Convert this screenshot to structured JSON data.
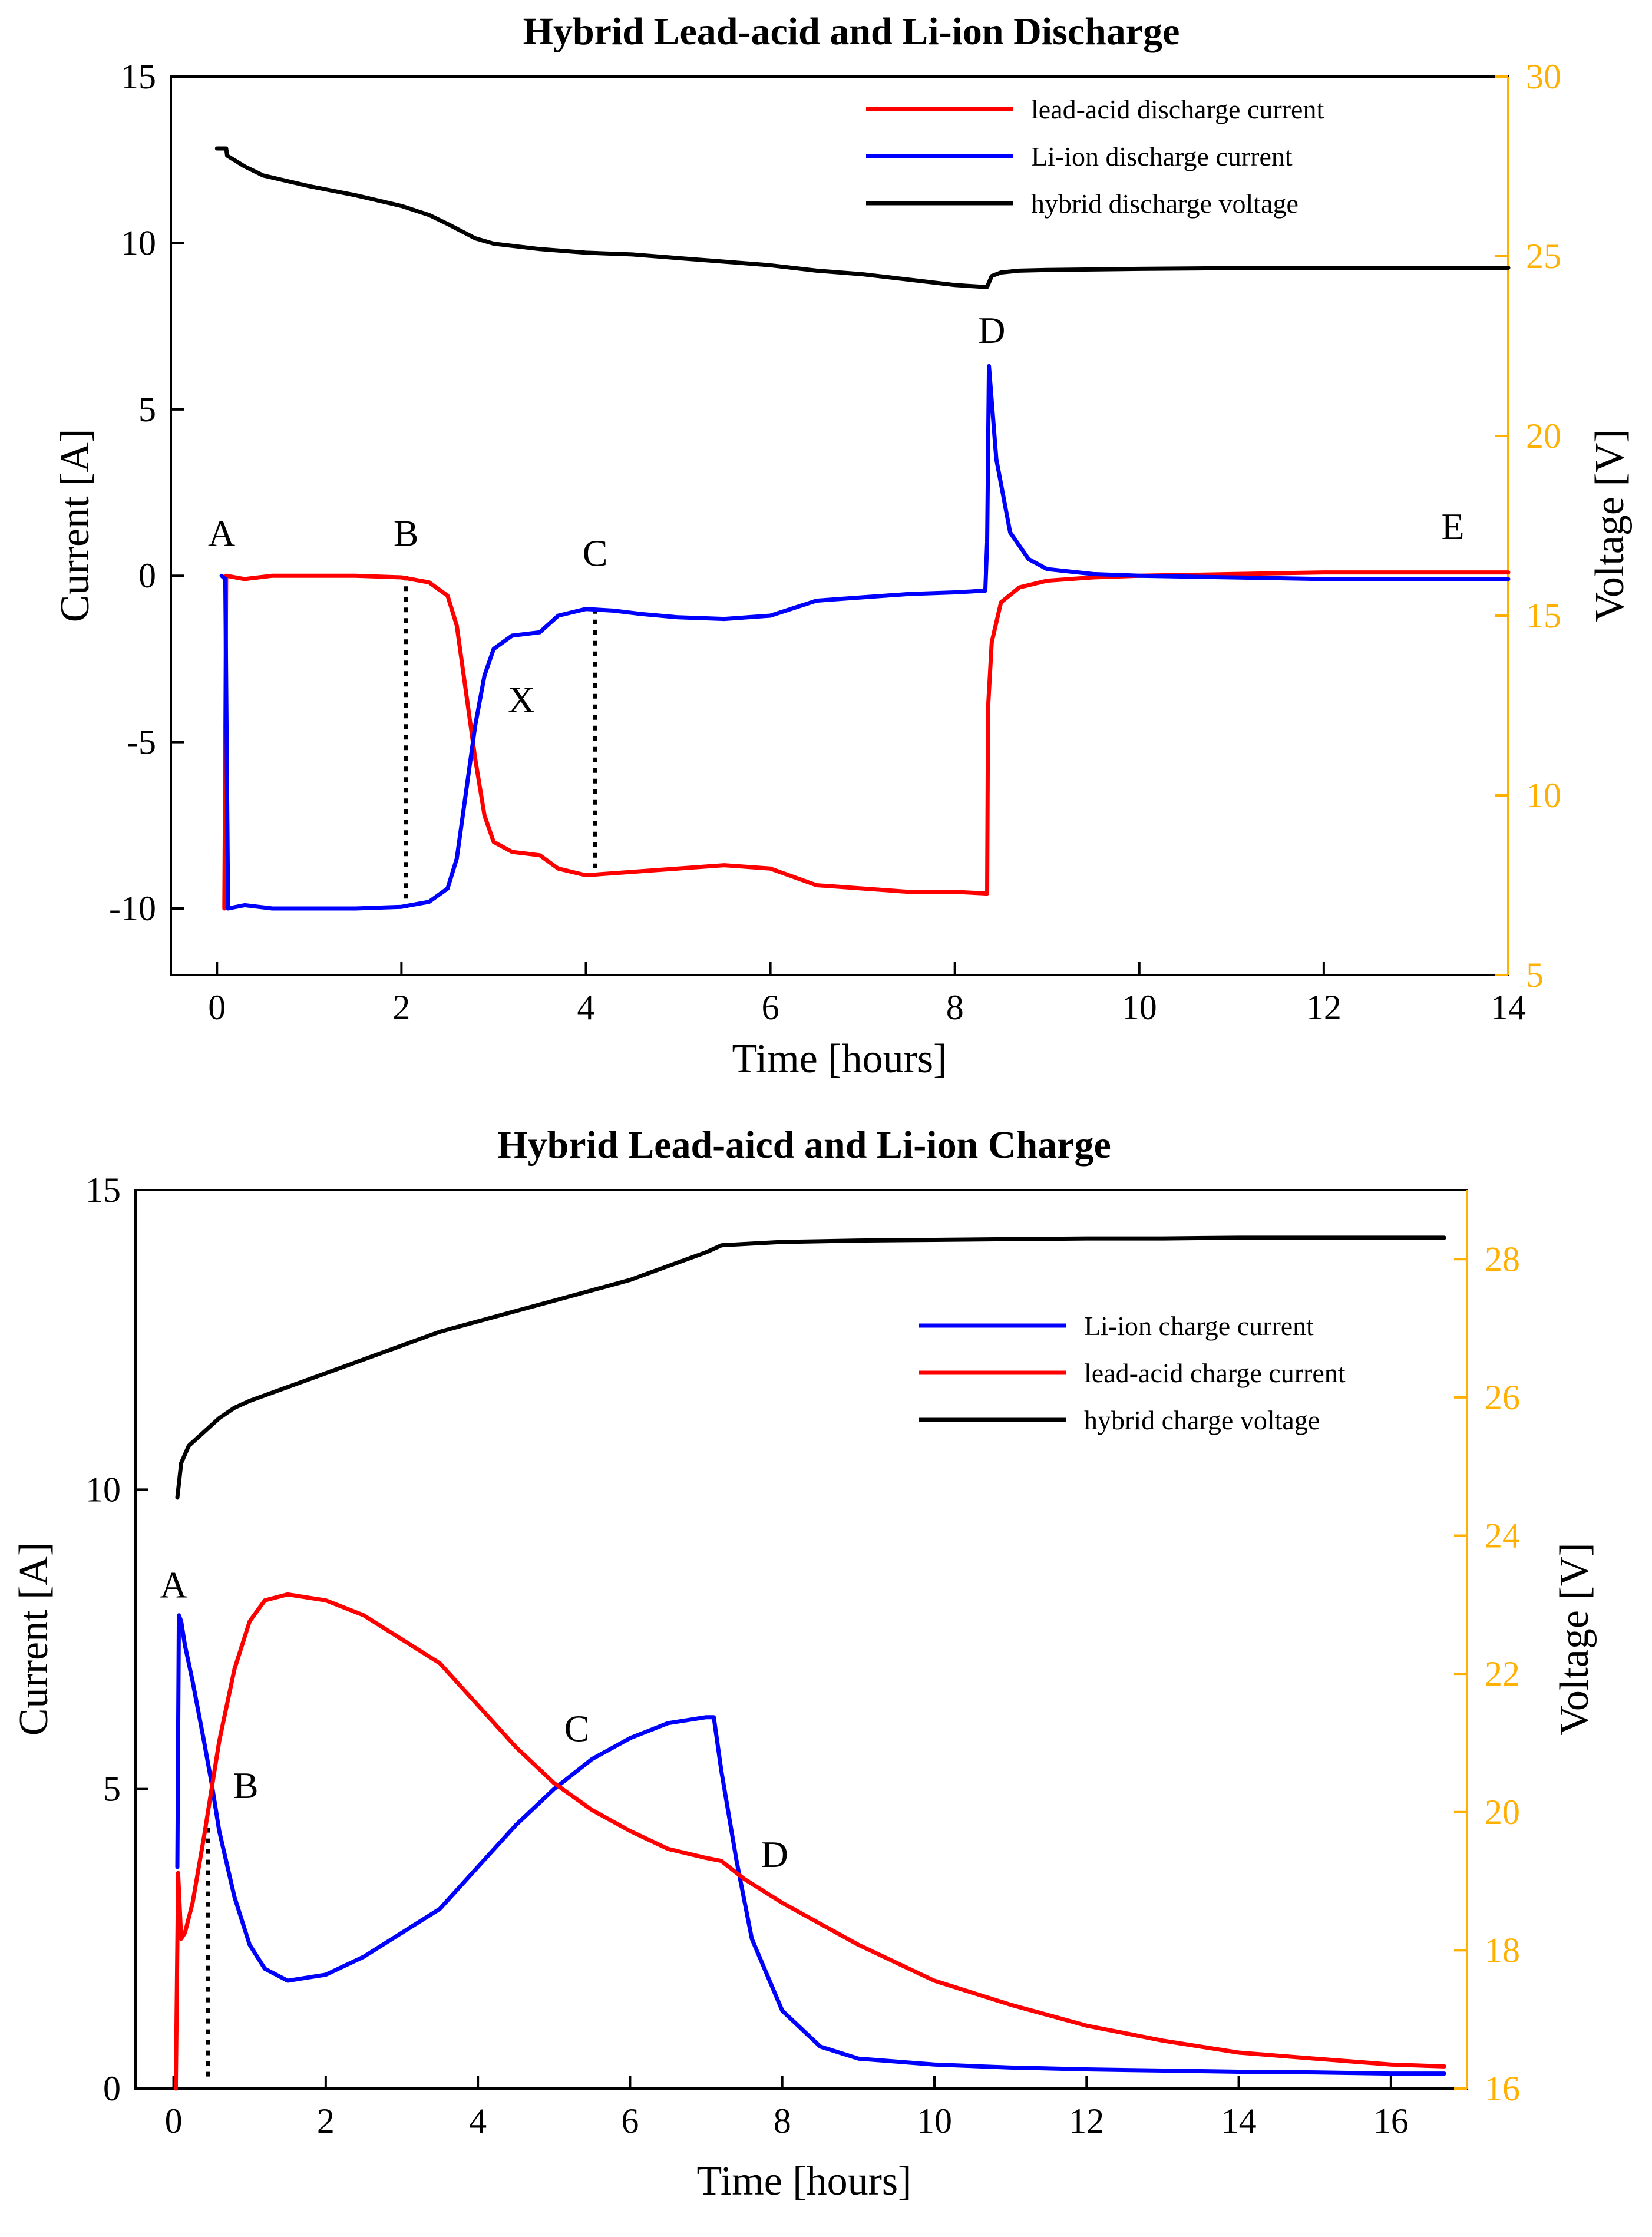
{
  "chart_data": [
    {
      "type": "line",
      "title": "Hybrid Lead-acid and Li-ion Discharge",
      "xlabel": "Time [hours]",
      "ylabel": "Current [A]",
      "y2label": "Voltage [V]",
      "xlim": [
        -0.5,
        14
      ],
      "ylim": [
        -12,
        15
      ],
      "y2lim": [
        5,
        30
      ],
      "xticks": [
        "0",
        "2",
        "4",
        "6",
        "8",
        "10",
        "12",
        "14"
      ],
      "yticks": [
        "-10",
        "-5",
        "0",
        "5",
        "10",
        "15"
      ],
      "y2ticks": [
        "5",
        "10",
        "15",
        "20",
        "25",
        "30"
      ],
      "legend_position": "top-right",
      "colors": {
        "lead_acid": "#ff0000",
        "li_ion": "#0000ff",
        "voltage": "#000000",
        "right_axis": "#ffb000"
      },
      "series": [
        {
          "name": "lead-acid discharge current",
          "axis": "left",
          "color": "#ff0000",
          "x": [
            0.08,
            0.1,
            0.3,
            0.6,
            1.0,
            1.5,
            2.0,
            2.3,
            2.5,
            2.6,
            2.7,
            2.8,
            2.9,
            3.0,
            3.2,
            3.5,
            3.7,
            4.0,
            4.5,
            5.0,
            5.5,
            6.0,
            6.5,
            7.0,
            7.5,
            8.0,
            8.35,
            8.36,
            8.4,
            8.5,
            8.7,
            9.0,
            9.5,
            10,
            11,
            12,
            13,
            14
          ],
          "y": [
            -10,
            0,
            -0.1,
            0,
            0,
            0,
            -0.05,
            -0.2,
            -0.6,
            -1.5,
            -3.5,
            -5.5,
            -7.2,
            -8.0,
            -8.3,
            -8.4,
            -8.8,
            -9.0,
            -8.9,
            -8.8,
            -8.7,
            -8.8,
            -9.3,
            -9.4,
            -9.5,
            -9.5,
            -9.55,
            -4.0,
            -2.0,
            -0.8,
            -0.35,
            -0.15,
            -0.05,
            0,
            0.05,
            0.1,
            0.1,
            0.1
          ]
        },
        {
          "name": "Li-ion discharge current",
          "axis": "left",
          "color": "#0000ff",
          "x": [
            0.05,
            0.09,
            0.12,
            0.3,
            0.6,
            1.0,
            1.5,
            2.0,
            2.3,
            2.5,
            2.6,
            2.7,
            2.8,
            2.9,
            3.0,
            3.2,
            3.5,
            3.7,
            4.0,
            4.3,
            4.6,
            5.0,
            5.5,
            6.0,
            6.5,
            7.0,
            7.5,
            8.0,
            8.33,
            8.35,
            8.37,
            8.45,
            8.6,
            8.8,
            9.0,
            9.5,
            10,
            11,
            12,
            13,
            14
          ],
          "y": [
            0,
            -0.1,
            -10,
            -9.9,
            -10,
            -10,
            -10,
            -9.95,
            -9.8,
            -9.4,
            -8.5,
            -6.5,
            -4.5,
            -3.0,
            -2.2,
            -1.8,
            -1.7,
            -1.2,
            -1.0,
            -1.05,
            -1.15,
            -1.25,
            -1.3,
            -1.2,
            -0.75,
            -0.65,
            -0.55,
            -0.5,
            -0.45,
            1.0,
            6.3,
            3.5,
            1.3,
            0.5,
            0.2,
            0.05,
            0,
            -0.05,
            -0.1,
            -0.1,
            -0.1
          ]
        },
        {
          "name": "hybrid discharge voltage",
          "axis": "right",
          "color": "#000000",
          "x": [
            0,
            0.1,
            0.11,
            0.3,
            0.5,
            1.0,
            1.5,
            2.0,
            2.3,
            2.5,
            2.8,
            3.0,
            3.5,
            4.0,
            4.5,
            5.0,
            5.5,
            6.0,
            6.5,
            7.0,
            7.5,
            8.0,
            8.3,
            8.35,
            8.4,
            8.5,
            8.7,
            9.0,
            10,
            11,
            12,
            13,
            14
          ],
          "y": [
            28.0,
            28.0,
            27.8,
            27.5,
            27.25,
            26.95,
            26.7,
            26.4,
            26.15,
            25.9,
            25.5,
            25.35,
            25.2,
            25.1,
            25.05,
            24.95,
            24.85,
            24.75,
            24.6,
            24.5,
            24.35,
            24.2,
            24.15,
            24.15,
            24.45,
            24.55,
            24.6,
            24.62,
            24.65,
            24.67,
            24.68,
            24.68,
            24.68
          ]
        }
      ],
      "annotations": [
        {
          "text": "A",
          "x": 0.05,
          "y": 0.9
        },
        {
          "text": "B",
          "x": 2.05,
          "y": 0.9
        },
        {
          "text": "C",
          "x": 4.1,
          "y": 0.3
        },
        {
          "text": "D",
          "x": 8.4,
          "y": 7.0
        },
        {
          "text": "E",
          "x": 13.4,
          "y": 1.1
        },
        {
          "text": "X",
          "x": 3.3,
          "y": -4.1
        }
      ],
      "markers": [
        {
          "x": 2.05,
          "y": [
            0,
            -10
          ]
        },
        {
          "x": 4.1,
          "y": [
            -1.0,
            -8.8
          ]
        }
      ]
    },
    {
      "type": "line",
      "title": "Hybrid Lead-aicd and Li-ion Charge",
      "xlabel": "Time [hours]",
      "ylabel": "Current [A]",
      "y2label": "Voltage [V]",
      "xlim": [
        -0.5,
        17
      ],
      "ylim": [
        0,
        15
      ],
      "y2lim": [
        16,
        29
      ],
      "xticks": [
        "0",
        "2",
        "4",
        "6",
        "8",
        "10",
        "12",
        "14",
        "16"
      ],
      "yticks": [
        "0",
        "5",
        "10",
        "15"
      ],
      "y2ticks": [
        "16",
        "18",
        "20",
        "22",
        "24",
        "26",
        "28"
      ],
      "legend_position": "top-right",
      "colors": {
        "lead_acid": "#ff0000",
        "li_ion": "#0000ff",
        "voltage": "#000000",
        "right_axis": "#ffb000"
      },
      "series": [
        {
          "name": "Li-ion charge current",
          "axis": "left",
          "color": "#0000ff",
          "x": [
            0.05,
            0.07,
            0.1,
            0.15,
            0.25,
            0.4,
            0.5,
            0.6,
            0.8,
            1.0,
            1.2,
            1.5,
            2.0,
            2.5,
            3.0,
            3.5,
            4.0,
            4.5,
            5.0,
            5.5,
            6.0,
            6.5,
            7.0,
            7.1,
            7.2,
            7.4,
            7.6,
            8.0,
            8.5,
            9.0,
            10,
            11,
            12,
            13,
            14,
            15,
            16,
            16.7
          ],
          "y": [
            3.7,
            7.9,
            7.8,
            7.4,
            6.8,
            5.8,
            5.1,
            4.3,
            3.2,
            2.4,
            2.0,
            1.8,
            1.9,
            2.2,
            2.6,
            3.0,
            3.7,
            4.4,
            5.0,
            5.5,
            5.85,
            6.1,
            6.2,
            6.2,
            5.3,
            3.8,
            2.5,
            1.3,
            0.7,
            0.5,
            0.4,
            0.35,
            0.32,
            0.3,
            0.28,
            0.27,
            0.25,
            0.25
          ]
        },
        {
          "name": "lead-acid charge current",
          "axis": "left",
          "color": "#ff0000",
          "x": [
            0.03,
            0.06,
            0.1,
            0.15,
            0.25,
            0.4,
            0.5,
            0.6,
            0.8,
            1.0,
            1.2,
            1.5,
            2.0,
            2.5,
            3.0,
            3.5,
            4.0,
            4.5,
            5.0,
            5.5,
            6.0,
            6.5,
            7.0,
            7.2,
            7.5,
            8.0,
            9.0,
            10,
            11,
            12,
            13,
            14,
            15,
            16,
            16.7
          ],
          "y": [
            0,
            3.6,
            2.5,
            2.6,
            3.1,
            4.2,
            5.0,
            5.8,
            7.0,
            7.8,
            8.15,
            8.25,
            8.15,
            7.9,
            7.5,
            7.1,
            6.4,
            5.7,
            5.1,
            4.65,
            4.3,
            4.0,
            3.85,
            3.8,
            3.5,
            3.1,
            2.4,
            1.8,
            1.4,
            1.05,
            0.8,
            0.6,
            0.5,
            0.4,
            0.37
          ]
        },
        {
          "name": "hybrid charge voltage",
          "axis": "right",
          "color": "#000000",
          "x": [
            0.05,
            0.1,
            0.2,
            0.4,
            0.6,
            0.8,
            1.0,
            1.5,
            2.0,
            2.5,
            3.0,
            3.5,
            4.0,
            4.5,
            5.0,
            5.5,
            6.0,
            6.5,
            7.0,
            7.2,
            7.5,
            8.0,
            9.0,
            10,
            11,
            12,
            13,
            14,
            15,
            16,
            16.7
          ],
          "y": [
            24.55,
            25.05,
            25.3,
            25.5,
            25.7,
            25.85,
            25.95,
            26.15,
            26.35,
            26.55,
            26.75,
            26.95,
            27.1,
            27.25,
            27.4,
            27.55,
            27.7,
            27.9,
            28.1,
            28.2,
            28.22,
            28.25,
            28.27,
            28.28,
            28.29,
            28.3,
            28.3,
            28.31,
            28.31,
            28.31,
            28.31
          ]
        }
      ],
      "annotations": [
        {
          "text": "A",
          "x": 0.0,
          "y": 8.2
        },
        {
          "text": "B",
          "x": 0.95,
          "y": 4.85
        },
        {
          "text": "C",
          "x": 5.3,
          "y": 5.8
        },
        {
          "text": "D",
          "x": 7.9,
          "y": 3.7
        }
      ],
      "markers": [
        {
          "x": 0.45,
          "y": [
            0.2,
            4.4
          ]
        }
      ]
    }
  ]
}
